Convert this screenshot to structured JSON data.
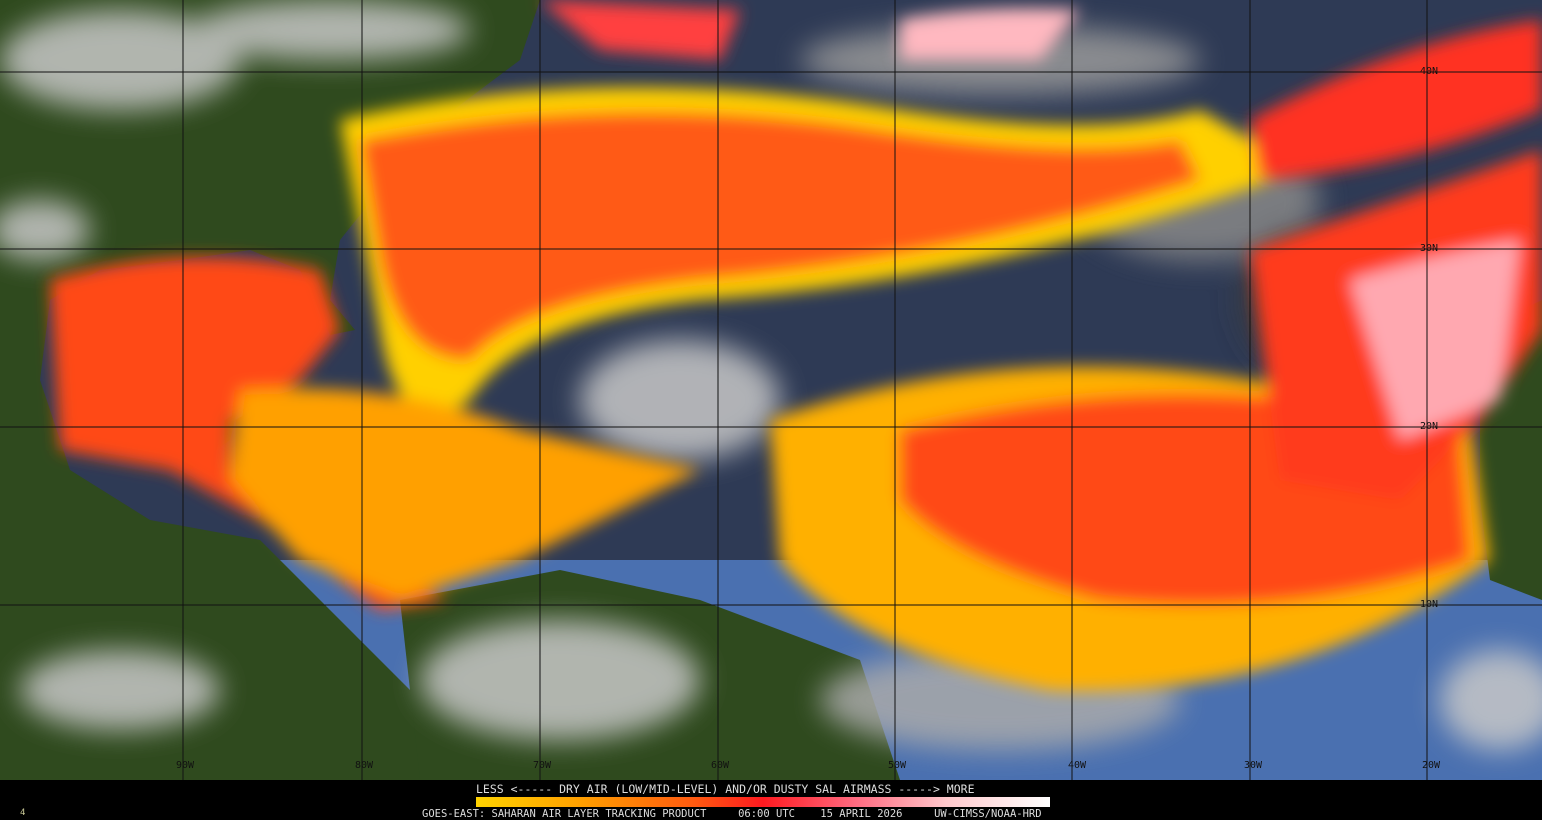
{
  "map": {
    "grid": {
      "longitudes": [
        "90W",
        "80W",
        "70W",
        "60W",
        "50W",
        "40W",
        "30W",
        "20W"
      ],
      "latitudes": [
        "40N",
        "30N",
        "20N",
        "10N"
      ]
    },
    "colors": {
      "ocean": "#3e5f9a",
      "land": "#2f4a1e",
      "cloud": "#b8b8b8",
      "dry_low": "#ffd200",
      "dry_mid": "#ff3a18",
      "dry_high": "#ffb0b8"
    }
  },
  "legend": {
    "caption": "LESS <----- DRY AIR (LOW/MID-LEVEL) AND/OR DUSTY SAL AIRMASS -----> MORE"
  },
  "footer": {
    "product": "GOES-EAST: SAHARAN AIR LAYER TRACKING PRODUCT",
    "time": "06:00 UTC",
    "date": "15 APRIL 2026",
    "source": "UW-CIMSS/NOAA-HRD",
    "frame": "4"
  }
}
